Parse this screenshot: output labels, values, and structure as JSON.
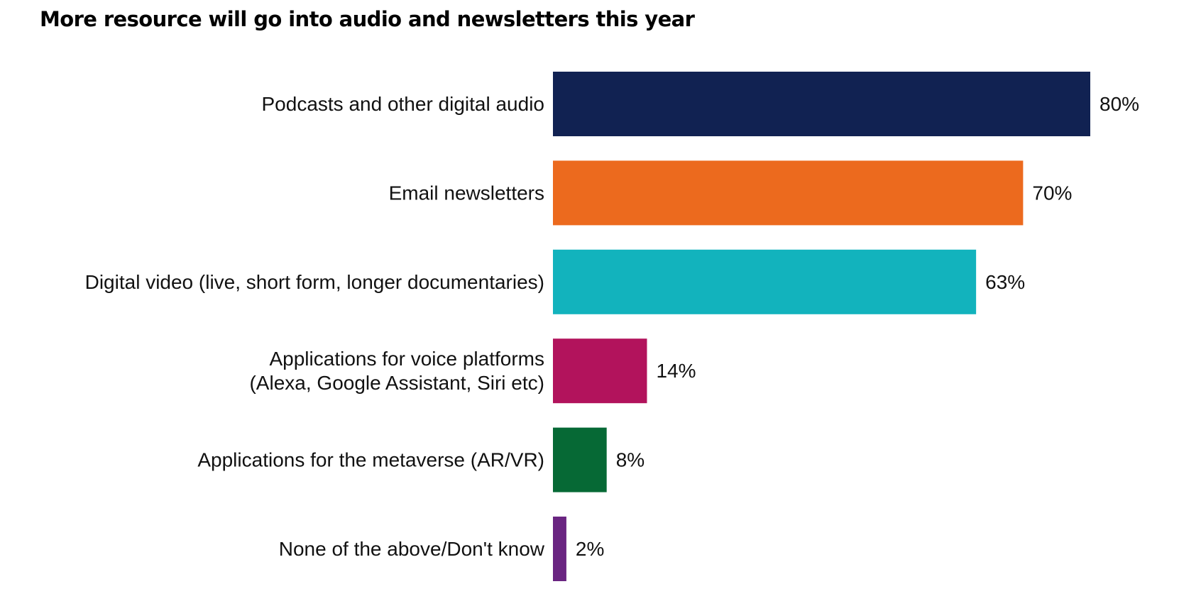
{
  "chart_data": {
    "type": "bar",
    "orientation": "horizontal",
    "title": "More resource will go into audio and newsletters this year",
    "categories": [
      [
        "Podcasts and other digital audio"
      ],
      [
        "Email newsletters"
      ],
      [
        "Digital video (live, short form, longer documentaries)"
      ],
      [
        "Applications for voice platforms",
        "(Alexa, Google Assistant, Siri etc)"
      ],
      [
        "Applications for the metaverse (AR/VR)"
      ],
      [
        "None of the above/Don't know"
      ]
    ],
    "values": [
      80,
      70,
      63,
      14,
      8,
      2
    ],
    "value_labels": [
      "80%",
      "70%",
      "63%",
      "14%",
      "8%",
      "2%"
    ],
    "colors": [
      "#112252",
      "#ec6a1e",
      "#12b3bd",
      "#b2135c",
      "#066935",
      "#6a2581"
    ],
    "unit": "%",
    "xlim": [
      0,
      80
    ],
    "grid": false,
    "legend": "none"
  }
}
